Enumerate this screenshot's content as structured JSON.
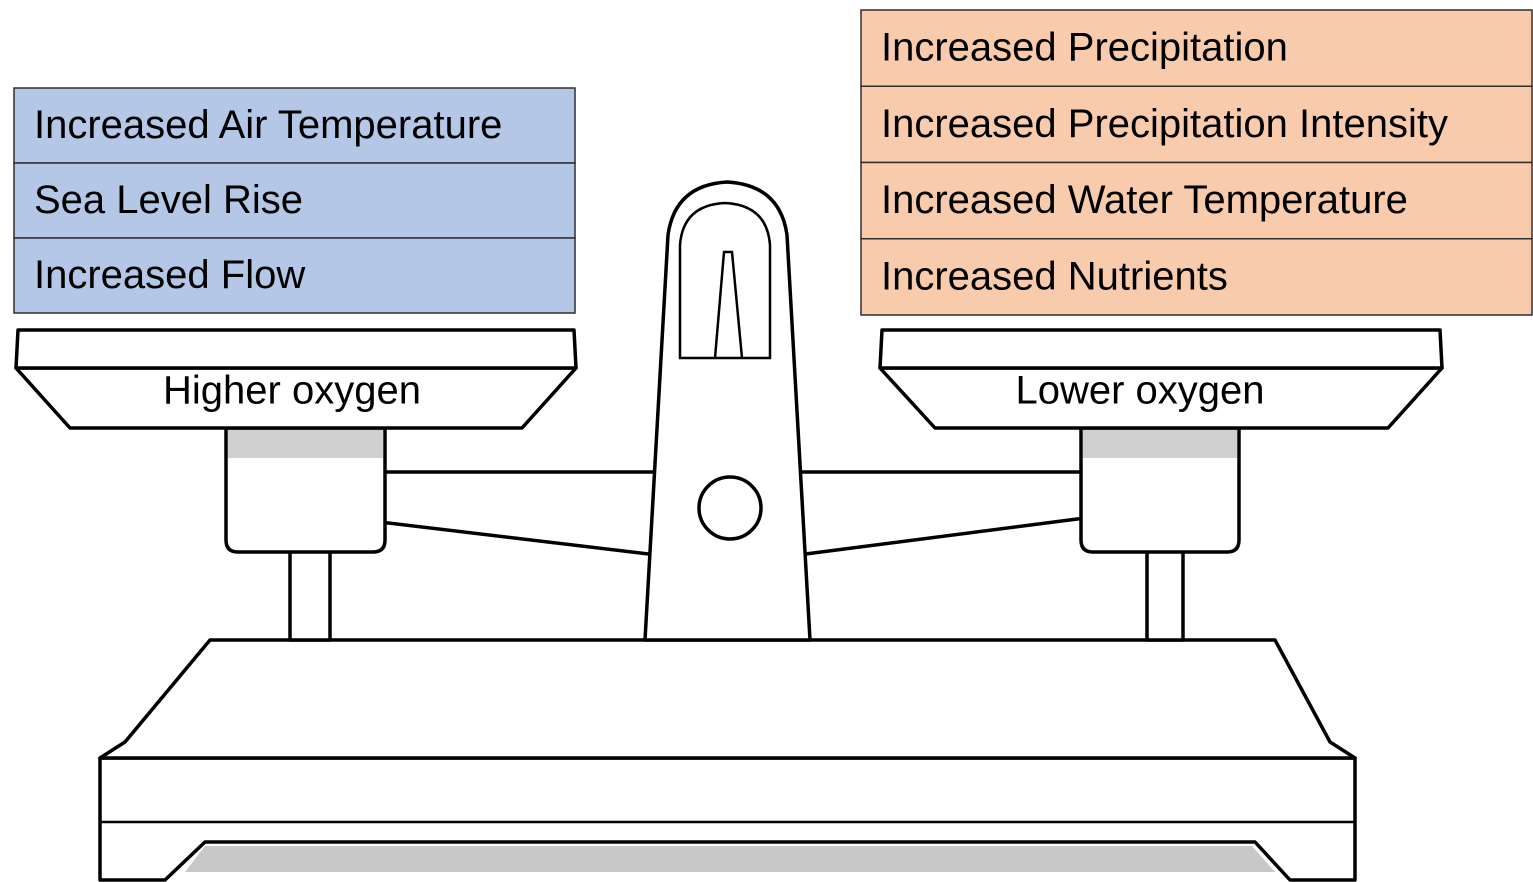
{
  "left_pan": {
    "label": "Higher oxygen",
    "factors": [
      "Increased Air Temperature",
      "Sea Level Rise",
      "Increased Flow"
    ]
  },
  "right_pan": {
    "label": "Lower oxygen",
    "factors": [
      "Increased Precipitation",
      "Increased Precipitation Intensity",
      "Increased Water Temperature",
      "Increased Nutrients"
    ]
  }
}
